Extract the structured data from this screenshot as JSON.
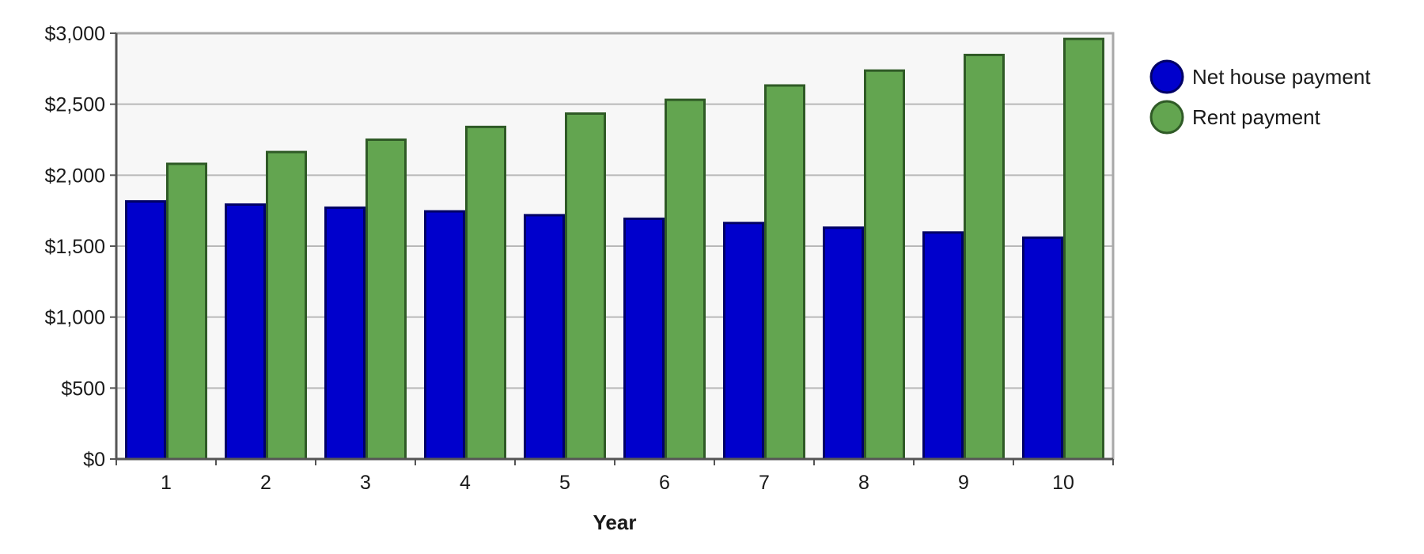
{
  "chart_data": {
    "type": "bar",
    "title": "",
    "xlabel": "Year",
    "ylabel": "",
    "categories": [
      "1",
      "2",
      "3",
      "4",
      "5",
      "6",
      "7",
      "8",
      "9",
      "10"
    ],
    "series": [
      {
        "name": "Net house payment",
        "color": "#0000cc",
        "edge_color": "#000066",
        "values": [
          1815,
          1793,
          1771,
          1745,
          1718,
          1693,
          1663,
          1630,
          1596,
          1560
        ]
      },
      {
        "name": "Rent payment",
        "color": "#63a550",
        "edge_color": "#2f5a26",
        "values": [
          2080,
          2163,
          2250,
          2340,
          2434,
          2531,
          2632,
          2737,
          2847,
          2960
        ]
      }
    ],
    "ylim": [
      0,
      3000
    ],
    "yticks": [
      0,
      500,
      1000,
      1500,
      2000,
      2500,
      3000
    ],
    "ytick_labels": [
      "$0",
      "$500",
      "$1,000",
      "$1,500",
      "$2,000",
      "$2,500",
      "$3,000"
    ],
    "grid": true,
    "legend_position": "right"
  }
}
